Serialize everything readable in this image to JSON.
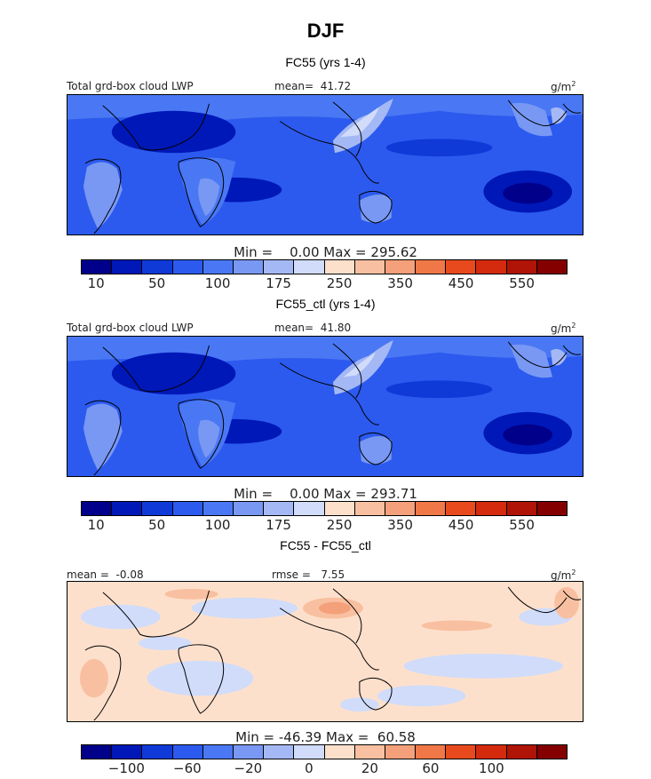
{
  "figure": {
    "title": "DJF"
  },
  "chart_data": [
    {
      "type": "heatmap",
      "title": "FC55 (yrs 1-4)",
      "field_label": "Total grd-box cloud LWP",
      "mean_label": "mean=",
      "mean_value": "41.72",
      "unit": "g/m",
      "unit_exp": "2",
      "min_label": "Min =",
      "min_value": "0.00",
      "max_label": "Max =",
      "max_value": "295.62",
      "colorbar": {
        "ticks": [
          "10",
          "50",
          "100",
          "175",
          "250",
          "350",
          "450",
          "550"
        ],
        "colors": [
          "#00008b",
          "#0018b8",
          "#0f3ad8",
          "#2c5aee",
          "#4a78f4",
          "#7898f4",
          "#a5b8f6",
          "#d0dcfa",
          "#fde0cc",
          "#f8c0a0",
          "#f4a07a",
          "#f07848",
          "#e84a1e",
          "#d42a0e",
          "#b01406",
          "#840000"
        ]
      }
    },
    {
      "type": "heatmap",
      "title": "FC55_ctl (yrs 1-4)",
      "field_label": "Total grd-box cloud LWP",
      "mean_label": "mean=",
      "mean_value": "41.80",
      "unit": "g/m",
      "unit_exp": "2",
      "min_label": "Min =",
      "min_value": "0.00",
      "max_label": "Max =",
      "max_value": "293.71",
      "colorbar": {
        "ticks": [
          "10",
          "50",
          "100",
          "175",
          "250",
          "350",
          "450",
          "550"
        ],
        "colors": [
          "#00008b",
          "#0018b8",
          "#0f3ad8",
          "#2c5aee",
          "#4a78f4",
          "#7898f4",
          "#a5b8f6",
          "#d0dcfa",
          "#fde0cc",
          "#f8c0a0",
          "#f4a07a",
          "#f07848",
          "#e84a1e",
          "#d42a0e",
          "#b01406",
          "#840000"
        ]
      }
    },
    {
      "type": "heatmap",
      "title": "FC55 - FC55_ctl",
      "mean_label": "mean =",
      "mean_value": "-0.08",
      "rmse_label": "rmse =",
      "rmse_value": "7.55",
      "unit": "g/m",
      "unit_exp": "2",
      "min_label": "Min =",
      "min_value": "-46.39",
      "max_label": "Max =",
      "max_value": "60.58",
      "colorbar": {
        "ticks": [
          "−100",
          "−60",
          "−20",
          "0",
          "20",
          "60",
          "100"
        ],
        "colors": [
          "#00008b",
          "#0018b8",
          "#0f3ad8",
          "#2c5aee",
          "#4a78f4",
          "#7898f4",
          "#a5b8f6",
          "#d0dcfa",
          "#fde0cc",
          "#f8c0a0",
          "#f4a07a",
          "#f07848",
          "#e84a1e",
          "#d42a0e",
          "#b01406",
          "#840000"
        ]
      }
    }
  ]
}
